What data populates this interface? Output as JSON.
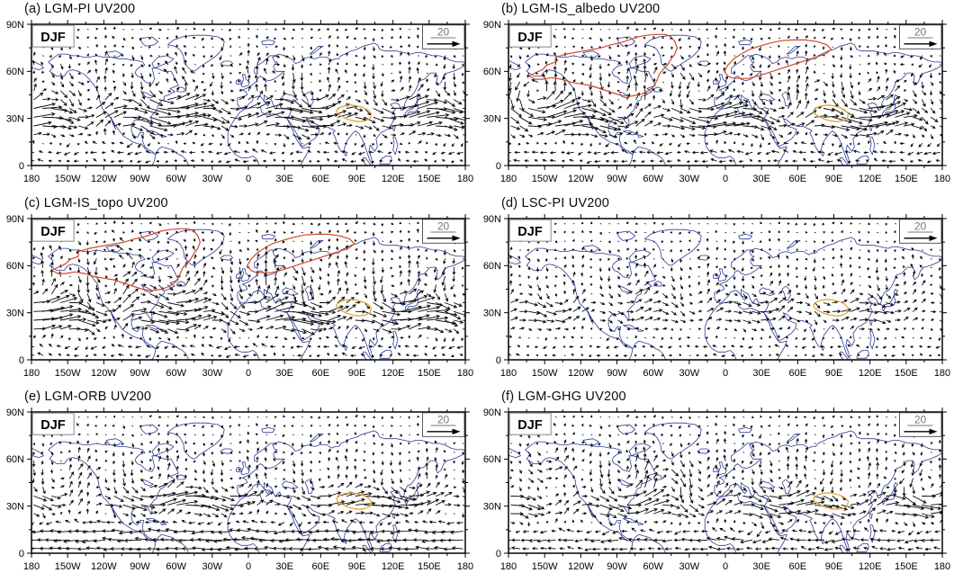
{
  "figure": {
    "variable": "UV200 (200-hPa wind vectors)",
    "season": "DJF",
    "reference_vector_label": "20"
  },
  "panels": [
    {
      "id": "a",
      "title": "(a) LGM-PI UV200",
      "season": "DJF",
      "ref_label": "20",
      "ice_sheet_outline": false
    },
    {
      "id": "b",
      "title": "(b) LGM-IS_albedo UV200",
      "season": "DJF",
      "ref_label": "20",
      "ice_sheet_outline": true
    },
    {
      "id": "c",
      "title": "(c) LGM-IS_topo UV200",
      "season": "DJF",
      "ref_label": "20",
      "ice_sheet_outline": true
    },
    {
      "id": "d",
      "title": "(d) LSC-PI UV200",
      "season": "DJF",
      "ref_label": "20",
      "ice_sheet_outline": false
    },
    {
      "id": "e",
      "title": "(e) LGM-ORB UV200",
      "season": "DJF",
      "ref_label": "20",
      "ice_sheet_outline": false
    },
    {
      "id": "f",
      "title": "(f) LGM-GHG UV200",
      "season": "DJF",
      "ref_label": "20",
      "ice_sheet_outline": false
    }
  ],
  "axes": {
    "lat_ticks": [
      "90N",
      "60N",
      "30N",
      "0"
    ],
    "lat_values": [
      90,
      60,
      30,
      0
    ],
    "lon_ticks": [
      "180",
      "150W",
      "120W",
      "90W",
      "60W",
      "30W",
      "0",
      "30E",
      "60E",
      "90E",
      "120E",
      "150E",
      "180"
    ],
    "lon_values": [
      -180,
      -150,
      -120,
      -90,
      -60,
      -30,
      0,
      30,
      60,
      90,
      120,
      150,
      180
    ],
    "minor_tick_step_deg": 15
  },
  "colors": {
    "coastline": "#2b3a94",
    "vector": "#0a0a0a",
    "ice_sheet_outline": "#cd4a2e",
    "tibet_outline": "#e4a83c",
    "frame": "#000000",
    "ref_text": "#777777",
    "djf_border": "#9a9a9a",
    "background": "#ffffff"
  },
  "chart_data": [
    {
      "type": "quiver",
      "panel": "a",
      "title": "(a) LGM-PI UV200",
      "season": "DJF",
      "variable": "200-hPa wind vector difference",
      "reference_vector": 20,
      "lon_range": [
        -180,
        180
      ],
      "lat_range": [
        0,
        90
      ],
      "overlays": [
        "coastlines",
        "Tibetan Plateau outline (orange)"
      ],
      "notable_features": "strong westerly anomaly band along ~25-35N from the Atlantic across North Africa and the Tibetan Plateau; cyclonic anomaly over the central North Atlantic (~50W, 45N); anticyclonic swirl over the NE Pacific"
    },
    {
      "type": "quiver",
      "panel": "b",
      "title": "(b) LGM-IS_albedo UV200",
      "season": "DJF",
      "variable": "200-hPa wind vector difference",
      "reference_vector": 20,
      "lon_range": [
        -180,
        180
      ],
      "lat_range": [
        0,
        90
      ],
      "overlays": [
        "coastlines",
        "Tibetan Plateau outline (orange)",
        "LGM ice-sheet outlines (red: Laurentide, Greenland, Fennoscandian/Barents)"
      ],
      "notable_features": "strong cyclonic anomaly over the North Pacific (~160W, 45N) with intense westerlies ~30N over the Pacific; weaker anomalies over Eurasia"
    },
    {
      "type": "quiver",
      "panel": "c",
      "title": "(c) LGM-IS_topo UV200",
      "season": "DJF",
      "variable": "200-hPa wind vector difference",
      "reference_vector": 20,
      "lon_range": [
        -180,
        180
      ],
      "lat_range": [
        0,
        90
      ],
      "overlays": [
        "coastlines",
        "Tibetan Plateau outline (orange)",
        "LGM ice-sheet outlines (red: Laurentide, Greenland, Fennoscandian/Barents)"
      ],
      "notable_features": "strong anomalous flow over and around the North American ice sheet; intense westerly band across the subtropical North Atlantic into North Africa"
    },
    {
      "type": "quiver",
      "panel": "d",
      "title": "(d) LSC-PI UV200",
      "season": "DJF",
      "variable": "200-hPa wind vector difference",
      "reference_vector": 20,
      "lon_range": [
        -180,
        180
      ],
      "lat_range": [
        0,
        90
      ],
      "overlays": [
        "coastlines",
        "Tibetan Plateau outline (orange)"
      ],
      "notable_features": "generally weak anomalies everywhere; modest vectors over the subtropical Pacific and Atlantic"
    },
    {
      "type": "quiver",
      "panel": "e",
      "title": "(e) LGM-ORB UV200",
      "season": "DJF",
      "variable": "200-hPa wind vector difference",
      "reference_vector": 20,
      "lon_range": [
        -180,
        180
      ],
      "lat_range": [
        0,
        90
      ],
      "overlays": [
        "coastlines",
        "Tibetan Plateau outline (orange)"
      ],
      "notable_features": "strong zonal bands: easterly anomalies in the tropics (0-20N) and westerly anomalies ~30-35N over Asia and the Pacific; cyclonic swirl over the NE Pacific"
    },
    {
      "type": "quiver",
      "panel": "f",
      "title": "(f) LGM-GHG UV200",
      "season": "DJF",
      "variable": "200-hPa wind vector difference",
      "reference_vector": 20,
      "lon_range": [
        -180,
        180
      ],
      "lat_range": [
        0,
        90
      ],
      "overlays": [
        "coastlines",
        "Tibetan Plateau outline (orange)"
      ],
      "notable_features": "large cyclonic anomalies over the central North Pacific (~150W, 42N) and central North Atlantic (~40W, 42N); westerly anomalies ~30N across Asia and the western Pacific"
    }
  ]
}
